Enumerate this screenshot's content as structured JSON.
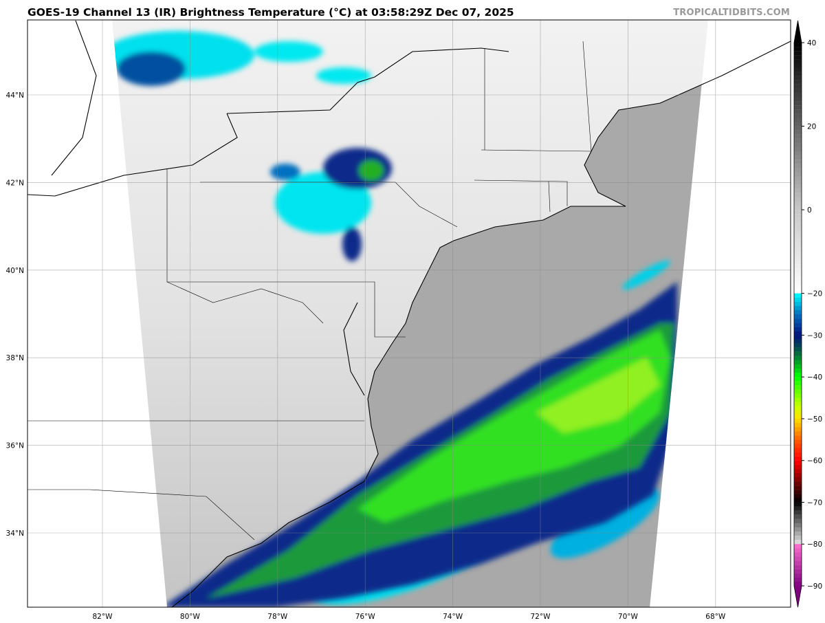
{
  "title": "GOES-19 Channel 13 (IR) Brightness Temperature (°C) at 03:58:29Z Dec 07, 2025",
  "watermark": "TROPICALTIDBITS.COM",
  "map": {
    "lat_labels": [
      {
        "value": 44,
        "label": "44°N"
      },
      {
        "value": 42,
        "label": "42°N"
      },
      {
        "value": 40,
        "label": "40°N"
      },
      {
        "value": 38,
        "label": "38°N"
      },
      {
        "value": 36,
        "label": "36°N"
      },
      {
        "value": 34,
        "label": "34°N"
      }
    ],
    "lon_labels": [
      {
        "value": -82,
        "label": "82°W"
      },
      {
        "value": -80,
        "label": "80°W"
      },
      {
        "value": -78,
        "label": "78°W"
      },
      {
        "value": -76,
        "label": "76°W"
      },
      {
        "value": -74,
        "label": "74°W"
      },
      {
        "value": -72,
        "label": "72°W"
      },
      {
        "value": -70,
        "label": "70°W"
      },
      {
        "value": -68,
        "label": "68°W"
      }
    ],
    "colors": {
      "land": "#d6d6d6",
      "ocean": "#a9a9a9",
      "cold_cyan": "#00e5f0",
      "deep_blue": "#0a2a8a",
      "green": "#22e010"
    }
  },
  "colorbar": {
    "range": [
      -90,
      40
    ],
    "ticks": [
      "40",
      "20",
      "0",
      "−20",
      "−30",
      "−40",
      "−50",
      "−60",
      "−70",
      "−80",
      "−90"
    ],
    "tick_values": [
      40,
      20,
      0,
      -20,
      -30,
      -40,
      -50,
      -60,
      -70,
      -80,
      -90
    ],
    "stops": [
      {
        "t": 40,
        "c": "#000000"
      },
      {
        "t": 0,
        "c": "#c8c8c8"
      },
      {
        "t": -19.9,
        "c": "#ffffff"
      },
      {
        "t": -20,
        "c": "#00ffff"
      },
      {
        "t": -25,
        "c": "#0070c0"
      },
      {
        "t": -30,
        "c": "#001080"
      },
      {
        "t": -34,
        "c": "#006040"
      },
      {
        "t": -40,
        "c": "#00ff00"
      },
      {
        "t": -47,
        "c": "#c8ff00"
      },
      {
        "t": -50,
        "c": "#ffe000"
      },
      {
        "t": -55,
        "c": "#ff6000"
      },
      {
        "t": -60,
        "c": "#ff0000"
      },
      {
        "t": -66,
        "c": "#600000"
      },
      {
        "t": -70,
        "c": "#000000"
      },
      {
        "t": -79.9,
        "c": "#e0e0e0"
      },
      {
        "t": -80,
        "c": "#ff70d0"
      },
      {
        "t": -90,
        "c": "#800080"
      }
    ]
  }
}
